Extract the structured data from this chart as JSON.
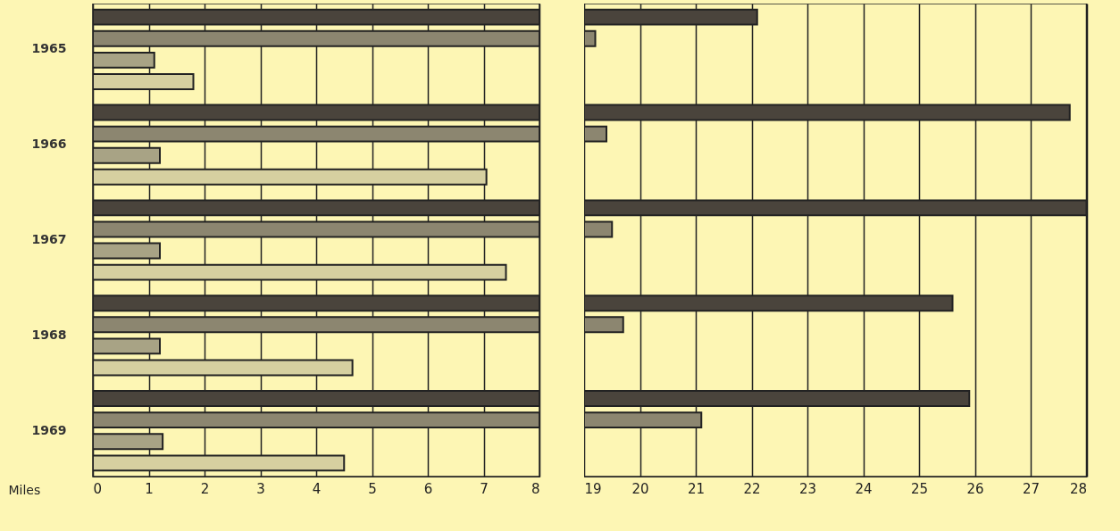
{
  "chart_data": [
    {
      "type": "bar",
      "orientation": "horizontal",
      "categories": [
        "1965",
        "1966",
        "1967",
        "1968",
        "1969"
      ],
      "xlabel": "Miles",
      "xlim": [
        0,
        8
      ],
      "xticks": [
        0,
        1,
        2,
        3,
        4,
        5,
        6,
        7,
        8
      ],
      "grid": "x",
      "series": [
        {
          "color": "#4a443c",
          "values": [
            8,
            8,
            8,
            8,
            8
          ]
        },
        {
          "color": "#8c8670",
          "values": [
            8,
            8,
            8,
            8,
            8
          ]
        },
        {
          "color": "#a8a385",
          "values": [
            1.1,
            1.2,
            1.2,
            1.2,
            1.25
          ]
        },
        {
          "color": "#d6d0a0",
          "values": [
            1.8,
            7.05,
            7.4,
            4.65,
            4.5
          ]
        }
      ]
    },
    {
      "type": "bar",
      "orientation": "horizontal",
      "categories": [
        "1965",
        "1966",
        "1967",
        "1968",
        "1969"
      ],
      "xlim": [
        19,
        28
      ],
      "xticks": [
        19,
        20,
        21,
        22,
        23,
        24,
        25,
        26,
        27,
        28
      ],
      "grid": "x",
      "tick_labels": "x",
      "series": [
        {
          "color": "#4a443c",
          "values": [
            22.1,
            27.7,
            28,
            25.6,
            25.9
          ]
        },
        {
          "color": "#8c8670",
          "values": [
            19.2,
            19.4,
            19.5,
            19.7,
            21.1
          ]
        },
        {
          "color": "#a8a385",
          "values": [
            null,
            null,
            null,
            null,
            null
          ]
        },
        {
          "color": "#d6d0a0",
          "values": [
            null,
            null,
            null,
            null,
            null
          ]
        }
      ]
    }
  ]
}
